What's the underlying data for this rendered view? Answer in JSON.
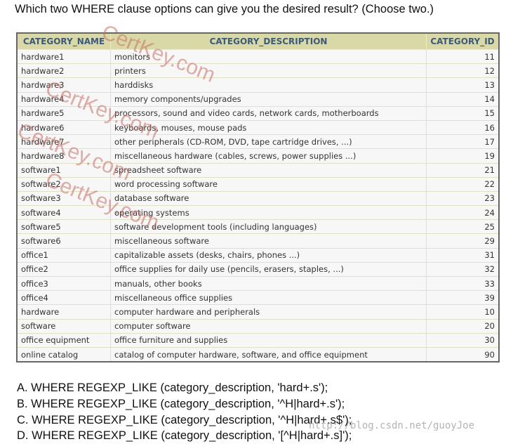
{
  "question": "Which two WHERE clause options can give you the desired result? (Choose two.)",
  "table": {
    "headers": [
      "CATEGORY_NAME",
      "CATEGORY_DESCRIPTION",
      "CATEGORY_ID"
    ],
    "rows": [
      [
        "hardware1",
        "monitors",
        "11"
      ],
      [
        "hardware2",
        "printers",
        "12"
      ],
      [
        "hardware3",
        "harddisks",
        "13"
      ],
      [
        "hardware4",
        "memory components/upgrades",
        "14"
      ],
      [
        "hardware5",
        "processors, sound and video cards, network cards, motherboards",
        "15"
      ],
      [
        "hardware6",
        "keyboards, mouses, mouse pads",
        "16"
      ],
      [
        "hardware7",
        "other peripherals (CD-ROM, DVD, tape cartridge drives, ...)",
        "17"
      ],
      [
        "hardware8",
        "miscellaneous hardware (cables, screws, power supplies ...)",
        "19"
      ],
      [
        "software1",
        "spreadsheet software",
        "21"
      ],
      [
        "software2",
        "word processing software",
        "22"
      ],
      [
        "software3",
        "database software",
        "23"
      ],
      [
        "software4",
        "operating systems",
        "24"
      ],
      [
        "software5",
        "software development tools (including languages)",
        "25"
      ],
      [
        "software6",
        "miscellaneous software",
        "29"
      ],
      [
        "office1",
        "capitalizable assets (desks, chairs, phones ...)",
        "31"
      ],
      [
        "office2",
        "office supplies for daily use (pencils, erasers, staples, ...)",
        "32"
      ],
      [
        "office3",
        "manuals, other books",
        "33"
      ],
      [
        "office4",
        "miscellaneous office supplies",
        "39"
      ],
      [
        "hardware",
        "computer hardware and peripherals",
        "10"
      ],
      [
        "software",
        "computer software",
        "20"
      ],
      [
        "office equipment",
        "office furniture and supplies",
        "30"
      ],
      [
        "online catalog",
        "catalog of computer hardware, software, and office equipment",
        "90"
      ]
    ]
  },
  "options": [
    "A. WHERE REGEXP_LIKE (category_description, 'hard+.s');",
    "B. WHERE REGEXP_LIKE (category_description, '^H|hard+.s');",
    "C. WHERE REGEXP_LIKE (category_description, '^H|hard+.s$');",
    "D. WHERE REGEXP_LIKE (category_description, '[^H|hard+.s]');"
  ],
  "watermark": "CertKey.com",
  "blog_watermark": "http://blog.csdn.net/guoyJoe"
}
